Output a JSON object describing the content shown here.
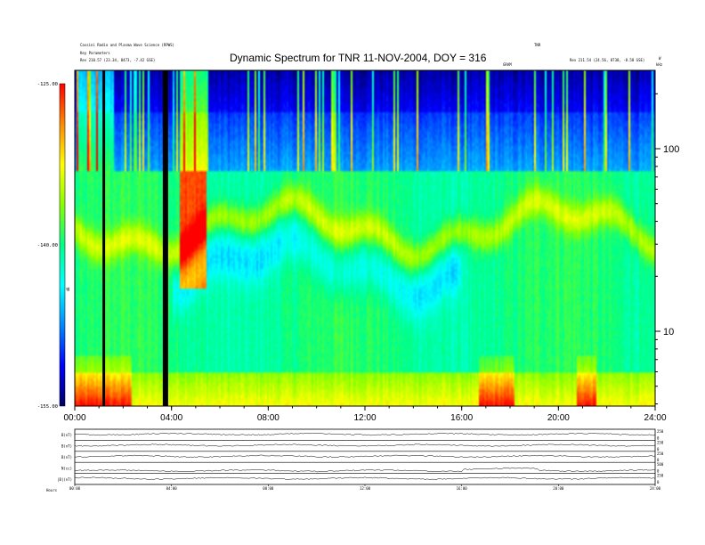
{
  "header": {
    "top_left_line1": "Cassini Radio and Plasma Wave Science (RPWS)",
    "top_left_line2": "Key Parameters",
    "top_left_line3": "Rev 210.57 (23.34, 8473, -7.42 GSE)",
    "top_right_line1": "TNR",
    "top_right_line2": "Rev 211.54 (24.56, 8738, -8.58 GSE)",
    "top_right_small": "kHz",
    "center_small": "GRAM",
    "right_marker": "W"
  },
  "chart_data": {
    "type": "heatmap",
    "title": "Dynamic Spectrum for TNR 11-NOV-2004, DOY = 316",
    "x_ticks": [
      "00:00",
      "04:00",
      "08:00",
      "12:00",
      "16:00",
      "20:00",
      "24:00"
    ],
    "x_range_hours": [
      0,
      24
    ],
    "y_right_ticks": [
      "100",
      "10"
    ],
    "y_right_scale": "log",
    "colorbar": {
      "ticks": [
        "-125.00",
        "-140.00",
        "-155.00"
      ],
      "range": [
        -155,
        -125
      ],
      "label": "dB",
      "colors": [
        "#ff0000",
        "#ff8800",
        "#ffff00",
        "#88ff00",
        "#00ff88",
        "#00ffff",
        "#0088ff",
        "#0000ff",
        "#000066"
      ]
    },
    "data_gaps_hours": [
      1.2,
      3.75
    ],
    "lower_panels": {
      "labels": [
        "B(nT)",
        "B(nT)",
        "B(nT)",
        "N(cc)",
        "|B|(nT)"
      ],
      "right_ticks": [
        [
          "250",
          "0"
        ],
        [
          "250",
          "0"
        ],
        [
          "250",
          "0"
        ],
        [
          "500",
          "0"
        ],
        [
          "250",
          "0"
        ]
      ],
      "x_ticks": [
        "00:00",
        "04:00",
        "08:00",
        "12:00",
        "16:00",
        "20:00",
        "24:00"
      ],
      "footer": "Hours"
    }
  }
}
